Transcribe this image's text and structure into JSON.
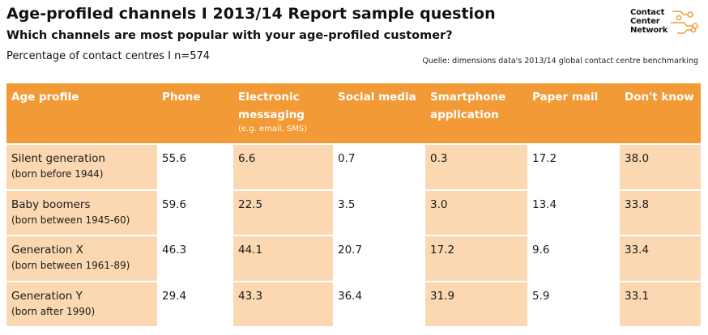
{
  "header": {
    "title": "Age-profiled channels I 2013/14 Report sample question",
    "subtitle": "Which channels are most popular with your age-profiled customer?",
    "caption": "Percentage of contact centres I n=574",
    "source": "Quelle: dimensions data's 2013/14 global contact centre benchmarking"
  },
  "logo": {
    "lines": [
      "Contact",
      "Center",
      "Network"
    ],
    "accent_color": "#f29a36"
  },
  "colors": {
    "header_bg": "#f29a36",
    "shade_bg": "#fbd8b2"
  },
  "table": {
    "columns": [
      {
        "label": "Age profile",
        "note": ""
      },
      {
        "label": "Phone",
        "note": ""
      },
      {
        "label": "Electronic messaging",
        "note": "(e.g. email, SMS)"
      },
      {
        "label": "Social media",
        "note": ""
      },
      {
        "label": "Smartphone application",
        "note": ""
      },
      {
        "label": "Paper mail",
        "note": ""
      },
      {
        "label": "Don't know",
        "note": ""
      }
    ],
    "rows": [
      {
        "name": "Silent generation",
        "sub": "(born before 1944)",
        "values": [
          "55.6",
          "6.6",
          "0.7",
          "0.3",
          "17.2",
          "38.0"
        ]
      },
      {
        "name": "Baby boomers",
        "sub": "(born between 1945-60)",
        "values": [
          "59.6",
          "22.5",
          "3.5",
          "3.0",
          "13.4",
          "33.8"
        ]
      },
      {
        "name": "Generation X",
        "sub": "(born between 1961-89)",
        "values": [
          "46.3",
          "44.1",
          "20.7",
          "17.2",
          "9.6",
          "33.4"
        ]
      },
      {
        "name": "Generation Y",
        "sub": "(born after 1990)",
        "values": [
          "29.4",
          "43.3",
          "36.4",
          "31.9",
          "5.9",
          "33.1"
        ]
      }
    ]
  }
}
